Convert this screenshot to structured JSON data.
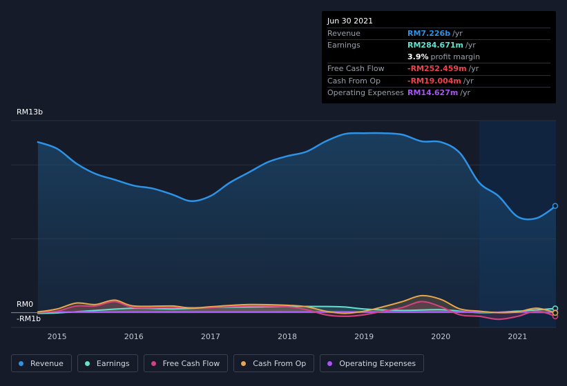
{
  "tooltip": {
    "date": "Jun 30 2021",
    "rows": [
      {
        "label": "Revenue",
        "value": "RM7.226b",
        "unit": "/yr",
        "color": "#2e93e6"
      },
      {
        "label": "Earnings",
        "value": "RM284.671m",
        "unit": "/yr",
        "color": "#62e3cf"
      },
      {
        "label": "",
        "value": "3.9%",
        "unit": "profit margin",
        "color": "#ffffff"
      },
      {
        "label": "Free Cash Flow",
        "value": "-RM252.459m",
        "unit": "/yr",
        "color": "#f0424c"
      },
      {
        "label": "Cash From Op",
        "value": "-RM19.004m",
        "unit": "/yr",
        "color": "#f0424c"
      },
      {
        "label": "Operating Expenses",
        "value": "RM14.627m",
        "unit": "/yr",
        "color": "#a855f7"
      }
    ]
  },
  "legend": [
    {
      "label": "Revenue",
      "color": "#2e93e6"
    },
    {
      "label": "Earnings",
      "color": "#62e3cf"
    },
    {
      "label": "Free Cash Flow",
      "color": "#d6427f"
    },
    {
      "label": "Cash From Op",
      "color": "#e8a74c"
    },
    {
      "label": "Operating Expenses",
      "color": "#a855f7"
    }
  ],
  "chart_data": {
    "type": "area",
    "ylim": [
      -1,
      13
    ],
    "ytick_labels": [
      {
        "value": 13,
        "label": "RM13b"
      },
      {
        "value": 0,
        "label": "RM0"
      },
      {
        "value": -1,
        "label": "-RM1b"
      }
    ],
    "xlim": [
      2014.4,
      2021.5
    ],
    "xticks": [
      2015,
      2016,
      2017,
      2018,
      2019,
      2020,
      2021
    ],
    "highlight_from": 2020.5,
    "series": [
      {
        "name": "Revenue",
        "color": "#2e93e6",
        "points": [
          [
            2014.75,
            11.55
          ],
          [
            2015,
            11.1
          ],
          [
            2015.25,
            10.1
          ],
          [
            2015.5,
            9.4
          ],
          [
            2015.75,
            9.0
          ],
          [
            2016,
            8.6
          ],
          [
            2016.25,
            8.4
          ],
          [
            2016.5,
            8.0
          ],
          [
            2016.75,
            7.55
          ],
          [
            2017,
            7.9
          ],
          [
            2017.25,
            8.8
          ],
          [
            2017.5,
            9.5
          ],
          [
            2017.75,
            10.2
          ],
          [
            2018,
            10.6
          ],
          [
            2018.25,
            10.9
          ],
          [
            2018.5,
            11.6
          ],
          [
            2018.75,
            12.1
          ],
          [
            2019,
            12.15
          ],
          [
            2019.25,
            12.15
          ],
          [
            2019.5,
            12.05
          ],
          [
            2019.75,
            11.6
          ],
          [
            2020,
            11.55
          ],
          [
            2020.25,
            10.8
          ],
          [
            2020.5,
            8.8
          ],
          [
            2020.75,
            7.9
          ],
          [
            2021,
            6.5
          ],
          [
            2021.25,
            6.4
          ],
          [
            2021.5,
            7.226
          ]
        ]
      },
      {
        "name": "Earnings",
        "color": "#62e3cf",
        "points": [
          [
            2014.75,
            -0.05
          ],
          [
            2015,
            -0.02
          ],
          [
            2015.5,
            0.15
          ],
          [
            2016,
            0.3
          ],
          [
            2016.5,
            0.25
          ],
          [
            2017,
            0.35
          ],
          [
            2017.5,
            0.38
          ],
          [
            2018,
            0.42
          ],
          [
            2018.5,
            0.42
          ],
          [
            2018.75,
            0.38
          ],
          [
            2019,
            0.25
          ],
          [
            2019.5,
            0.15
          ],
          [
            2020,
            0.2
          ],
          [
            2020.5,
            0.0
          ],
          [
            2021,
            0.1
          ],
          [
            2021.5,
            0.285
          ]
        ]
      },
      {
        "name": "Free Cash Flow",
        "color": "#d6427f",
        "points": [
          [
            2014.75,
            0.0
          ],
          [
            2015,
            0.1
          ],
          [
            2015.25,
            0.45
          ],
          [
            2015.5,
            0.45
          ],
          [
            2015.75,
            0.75
          ],
          [
            2016,
            0.35
          ],
          [
            2016.5,
            0.35
          ],
          [
            2017,
            0.35
          ],
          [
            2017.5,
            0.45
          ],
          [
            2018,
            0.4
          ],
          [
            2018.25,
            0.2
          ],
          [
            2018.5,
            -0.15
          ],
          [
            2018.75,
            -0.25
          ],
          [
            2019,
            -0.15
          ],
          [
            2019.25,
            0.1
          ],
          [
            2019.5,
            0.35
          ],
          [
            2019.75,
            0.75
          ],
          [
            2020,
            0.4
          ],
          [
            2020.25,
            -0.15
          ],
          [
            2020.5,
            -0.25
          ],
          [
            2020.75,
            -0.45
          ],
          [
            2021,
            -0.25
          ],
          [
            2021.25,
            0.1
          ],
          [
            2021.5,
            -0.252
          ]
        ]
      },
      {
        "name": "Cash From Op",
        "color": "#e8a74c",
        "points": [
          [
            2014.75,
            0.05
          ],
          [
            2015,
            0.25
          ],
          [
            2015.25,
            0.65
          ],
          [
            2015.5,
            0.55
          ],
          [
            2015.75,
            0.85
          ],
          [
            2016,
            0.45
          ],
          [
            2016.5,
            0.45
          ],
          [
            2016.75,
            0.3
          ],
          [
            2017,
            0.4
          ],
          [
            2017.5,
            0.55
          ],
          [
            2018,
            0.5
          ],
          [
            2018.25,
            0.4
          ],
          [
            2018.5,
            0.1
          ],
          [
            2018.75,
            -0.05
          ],
          [
            2019,
            0.1
          ],
          [
            2019.25,
            0.4
          ],
          [
            2019.5,
            0.75
          ],
          [
            2019.75,
            1.15
          ],
          [
            2020,
            0.9
          ],
          [
            2020.25,
            0.25
          ],
          [
            2020.5,
            0.1
          ],
          [
            2020.75,
            0.0
          ],
          [
            2021,
            0.05
          ],
          [
            2021.25,
            0.3
          ],
          [
            2021.5,
            -0.019
          ]
        ]
      },
      {
        "name": "Operating Expenses",
        "color": "#a855f7",
        "points": [
          [
            2014.75,
            0.05
          ],
          [
            2015.5,
            0.05
          ],
          [
            2016,
            0.06
          ],
          [
            2017,
            0.07
          ],
          [
            2018,
            0.07
          ],
          [
            2019,
            0.06
          ],
          [
            2020,
            0.06
          ],
          [
            2020.5,
            0.03
          ],
          [
            2021,
            0.02
          ],
          [
            2021.5,
            0.015
          ]
        ]
      }
    ]
  }
}
